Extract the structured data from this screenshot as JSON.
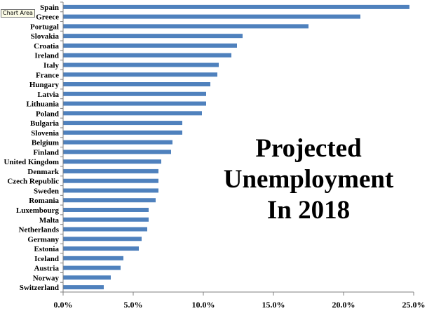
{
  "tooltip": "Chart Area",
  "chart_data": {
    "type": "bar",
    "orientation": "horizontal",
    "title_lines": [
      "Projected",
      "Unemployment",
      "In 2018"
    ],
    "categories": [
      "Spain",
      "Greece",
      "Portugal",
      "Slovakia",
      "Croatia",
      "Ireland",
      "Italy",
      "France",
      "Hungary",
      "Latvia",
      "Lithuania",
      "Poland",
      "Bulgaria",
      "Slovenia",
      "Belgium",
      "Finland",
      "United Kingdom",
      "Denmark",
      "Czech Republic",
      "Sweden",
      "Romania",
      "Luxembourg",
      "Malta",
      "Netherlands",
      "Germany",
      "Estonia",
      "Iceland",
      "Austria",
      "Norway",
      "Switzerland"
    ],
    "values": [
      24.7,
      21.2,
      17.5,
      12.8,
      12.4,
      12.0,
      11.1,
      11.0,
      10.5,
      10.2,
      10.2,
      9.9,
      8.5,
      8.5,
      7.8,
      7.7,
      7.0,
      6.8,
      6.8,
      6.8,
      6.6,
      6.1,
      6.1,
      6.0,
      5.6,
      5.4,
      4.3,
      4.1,
      3.4,
      2.9
    ],
    "xlim": [
      0,
      25
    ],
    "xticks": [
      0,
      5,
      10,
      15,
      20,
      25
    ],
    "xtick_labels": [
      "0.0%",
      "5.0%",
      "10.0%",
      "15.0%",
      "20.0%",
      "25.0%"
    ],
    "bar_color": "#4f81bd",
    "grid": false
  }
}
